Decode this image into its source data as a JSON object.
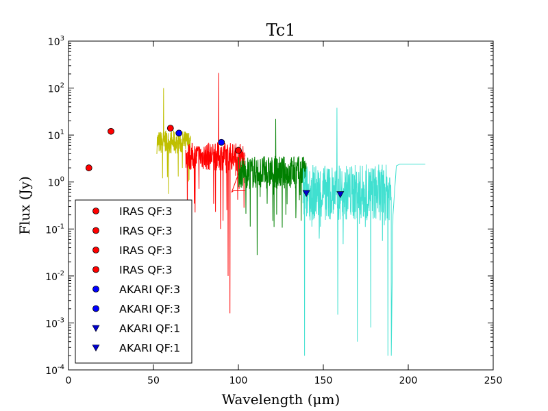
{
  "chart_data": {
    "type": "line",
    "title": "Tc1",
    "xlabel": "Wavelength (μm)",
    "ylabel": "Flux (Jy)",
    "xlim": [
      0,
      250
    ],
    "ylim_log10": [
      -4,
      3
    ],
    "yscale": "log",
    "x_ticks": [
      "0",
      "50",
      "100",
      "150",
      "200",
      "250"
    ],
    "y_ticks": [
      {
        "base": "10",
        "exp": "-4"
      },
      {
        "base": "10",
        "exp": "-3"
      },
      {
        "base": "10",
        "exp": "-2"
      },
      {
        "base": "10",
        "exp": "-1"
      },
      {
        "base": "10",
        "exp": "0"
      },
      {
        "base": "10",
        "exp": "1"
      },
      {
        "base": "10",
        "exp": "2"
      },
      {
        "base": "10",
        "exp": "3"
      }
    ],
    "spectra": [
      {
        "name": "spectrum-yellow",
        "color": "#bfbf00",
        "x_range": [
          52,
          72
        ],
        "level": 7,
        "noise": 0.25,
        "spikes": [
          [
            56,
            100
          ],
          [
            55.3,
            1.2
          ],
          [
            57,
            12
          ],
          [
            67,
            2
          ],
          [
            71,
            1.1
          ]
        ]
      },
      {
        "name": "spectrum-red",
        "color": "#ff0000",
        "x_range": [
          69,
          104
        ],
        "level": 3.5,
        "noise": 0.3,
        "spikes": [
          [
            88.5,
            210
          ],
          [
            95,
            0.0016
          ],
          [
            94,
            0.01
          ],
          [
            89.5,
            0.1
          ],
          [
            91,
            0.15
          ],
          [
            70,
            0.2
          ]
        ],
        "tail": [
          [
            96,
            0.6
          ],
          [
            97,
            0.65
          ],
          [
            104,
            0.65
          ]
        ]
      },
      {
        "name": "spectrum-green",
        "color": "#008000",
        "x_range": [
          100,
          140
        ],
        "level": 1.6,
        "noise": 0.35,
        "spikes": [
          [
            122,
            22
          ],
          [
            111,
            0.028
          ],
          [
            128,
            0.2
          ],
          [
            137,
            0.15
          ],
          [
            134,
            0.3
          ]
        ]
      },
      {
        "name": "spectrum-cyan",
        "color": "#40e0d0",
        "x_range": [
          138,
          190
        ],
        "level": 0.6,
        "noise": 0.6,
        "spikes": [
          [
            158,
            38
          ],
          [
            139,
            0.0002
          ],
          [
            158.5,
            0.0015
          ],
          [
            170,
            0.0004
          ],
          [
            188,
            0.0002
          ],
          [
            178,
            0.0008
          ]
        ],
        "tail": [
          [
            190,
            0.0002
          ],
          [
            191,
            0.2
          ],
          [
            193,
            2.2
          ],
          [
            195,
            2.4
          ],
          [
            210,
            2.4
          ]
        ]
      }
    ],
    "points": [
      {
        "x": 12,
        "y": 2.0,
        "color": "#ff0000",
        "marker": "circle"
      },
      {
        "x": 25,
        "y": 12,
        "color": "#ff0000",
        "marker": "circle"
      },
      {
        "x": 60,
        "y": 14,
        "color": "#ff0000",
        "marker": "circle"
      },
      {
        "x": 100,
        "y": 4.7,
        "color": "#ff0000",
        "marker": "circle"
      },
      {
        "x": 65,
        "y": 11,
        "color": "#0000ff",
        "marker": "circle"
      },
      {
        "x": 90,
        "y": 7.0,
        "color": "#0000ff",
        "marker": "circle"
      },
      {
        "x": 140,
        "y": 0.58,
        "color": "#0000cc",
        "marker": "triangle"
      },
      {
        "x": 160,
        "y": 0.55,
        "color": "#0000cc",
        "marker": "triangle"
      }
    ],
    "legend": {
      "position": "lower-left",
      "entries": [
        {
          "label": "IRAS QF:3",
          "color": "#ff0000",
          "marker": "circle"
        },
        {
          "label": "IRAS QF:3",
          "color": "#ff0000",
          "marker": "circle"
        },
        {
          "label": "IRAS QF:3",
          "color": "#ff0000",
          "marker": "circle"
        },
        {
          "label": "IRAS QF:3",
          "color": "#ff0000",
          "marker": "circle"
        },
        {
          "label": "AKARI QF:3",
          "color": "#0000ff",
          "marker": "circle"
        },
        {
          "label": "AKARI QF:3",
          "color": "#0000ff",
          "marker": "circle"
        },
        {
          "label": "AKARI QF:1",
          "color": "#0000cc",
          "marker": "triangle"
        },
        {
          "label": "AKARI QF:1",
          "color": "#0000cc",
          "marker": "triangle"
        }
      ]
    }
  }
}
